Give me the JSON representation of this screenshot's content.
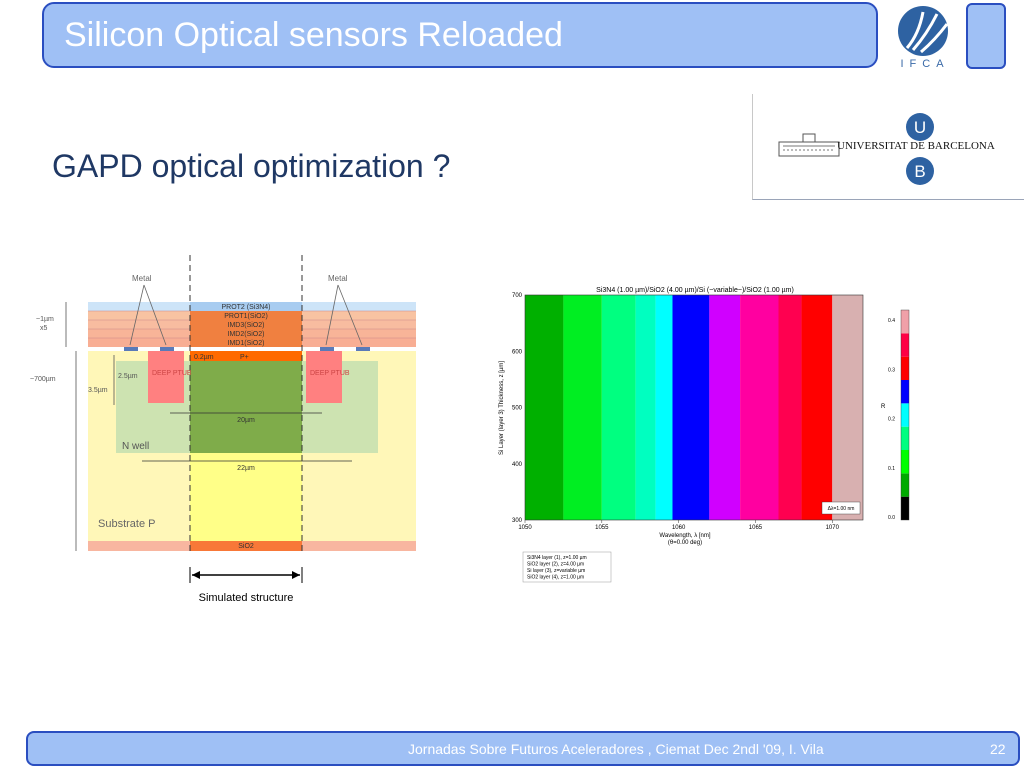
{
  "header": {
    "title": "Silicon Optical sensors Reloaded"
  },
  "logos": {
    "ifca_text": "IFCA",
    "ub_name": "UNIVERSITAT DE BARCELONA",
    "ub_top": "U",
    "ub_bottom": "B"
  },
  "slide": {
    "subtitle": "GAPD optical optimization ?"
  },
  "diagram": {
    "metal_left": "Metal",
    "metal_right": "Metal",
    "dim_1um": "~1µm",
    "dim_x5": "x5",
    "dim_700um": "~700µm",
    "dim_3_5um": "3.5µm",
    "dim_2_5um": "2.5µm",
    "dim_0_2um": "0.2µm",
    "dim_20um": "20µm",
    "dim_22um": "22µm",
    "layers": [
      "PROT2 (Si3N4)",
      "PROT1(SiO2)",
      "IMD3(SiO2)",
      "IMD2(SiO2)",
      "IMD1(SiO2)"
    ],
    "p_plus": "P+",
    "deep_ptub_left": "DEEP PTUB",
    "deep_ptub_right": "DEEP PTUB",
    "n_well": "N well",
    "substrate": "Substrate P",
    "sio2_bottom": "SiO2",
    "caption": "Simulated structure"
  },
  "chart_data": {
    "type": "heatmap",
    "title": "Si3N4 (1.00 µm)/SiO2 (4.00 µm)/Si (~variable~)/SiO2 (1.00 µm)",
    "xlabel": "Wavelength, λ [nm]",
    "xlabel2": "(θ=0.00 deg)",
    "ylabel": "Si Layer (layer 3) Thickness, z [µm]",
    "x_ticks": [
      "1050",
      "1055",
      "1060",
      "1065",
      "1070"
    ],
    "y_ticks": [
      "700",
      "600",
      "500",
      "400",
      "300"
    ],
    "xlim": [
      1050,
      1072
    ],
    "ylim": [
      300,
      700
    ],
    "colorbar_label": "R",
    "colorbar_ticks": [
      "0.4",
      "0.3",
      "0.2",
      "0.1",
      "0.0"
    ],
    "resolution_label": "Δλ=1.00 nm",
    "legend_lines": [
      "Si3N4 layer (1), z=1.00 µm",
      "SiO2 layer (2), z=4.00 µm",
      "Si layer (3), z=variable µm",
      "SiO2 layer (4), z=1.00 µm"
    ],
    "bands": [
      {
        "x0": 1050.0,
        "x1": 1052.5,
        "color": "#00b000"
      },
      {
        "x0": 1052.5,
        "x1": 1055.0,
        "color": "#00ee22"
      },
      {
        "x0": 1055.0,
        "x1": 1057.2,
        "color": "#00ff80"
      },
      {
        "x0": 1057.2,
        "x1": 1058.5,
        "color": "#00ffc0"
      },
      {
        "x0": 1058.5,
        "x1": 1059.6,
        "color": "#00ffff"
      },
      {
        "x0": 1059.6,
        "x1": 1062.0,
        "color": "#0000ff"
      },
      {
        "x0": 1062.0,
        "x1": 1064.0,
        "color": "#d000ff"
      },
      {
        "x0": 1064.0,
        "x1": 1066.5,
        "color": "#ff00a0"
      },
      {
        "x0": 1066.5,
        "x1": 1068.0,
        "color": "#ff0050"
      },
      {
        "x0": 1068.0,
        "x1": 1070.0,
        "color": "#ff0000"
      },
      {
        "x0": 1070.0,
        "x1": 1072.0,
        "color": "#d8b0b0"
      }
    ],
    "colorbar_colors": [
      "#000000",
      "#00aa00",
      "#00ff00",
      "#00ff80",
      "#00ffff",
      "#0000ff",
      "#ff0000",
      "#ff0044",
      "#f0a0a8"
    ]
  },
  "footer": {
    "text": "Jornadas Sobre Futuros Aceleradores ,  Ciemat Dec 2ndl  '09,   I. Vila",
    "page": "22"
  }
}
